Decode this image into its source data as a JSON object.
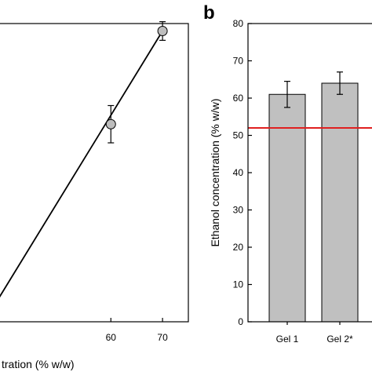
{
  "chart_data": [
    {
      "type": "scatter",
      "panel_label": "",
      "xlabel": "tration (% w/w)",
      "ylabel": "",
      "xlim": [
        35.5,
        75.0
      ],
      "ylim": [
        0,
        80
      ],
      "x_ticks": [
        "60",
        "70"
      ],
      "series": [
        {
          "points": [
            {
              "x": 60,
              "y": 53,
              "err": 5
            },
            {
              "x": 70,
              "y": 78,
              "err": 2.5
            }
          ],
          "marker_color": "#bdbdbd"
        }
      ],
      "fit_line": {
        "x": [
          35.5,
          70
        ],
        "y": [
          0,
          78
        ]
      },
      "grid": false,
      "legend": "none"
    },
    {
      "type": "bar",
      "panel_label": "b",
      "categories": [
        "Gel 1",
        "Gel 2*"
      ],
      "values": [
        61,
        64
      ],
      "errors": [
        3.5,
        3
      ],
      "ylabel": "Ethanol concentration (% w/w)",
      "xlabel": "",
      "ylim": [
        0,
        80
      ],
      "y_ticks": [
        "0",
        "10",
        "20",
        "30",
        "40",
        "50",
        "60",
        "70",
        "80"
      ],
      "reference_line": {
        "y": 52,
        "color": "#e02020"
      },
      "bar_color": "#c0c0c0",
      "grid": false,
      "legend": "none"
    }
  ]
}
